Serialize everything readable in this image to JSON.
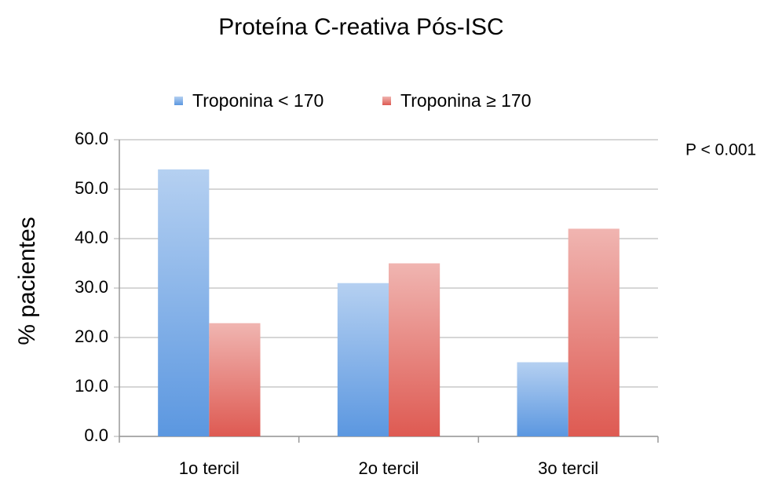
{
  "chart_data": {
    "type": "bar",
    "title": "Proteína C-reativa Pós-ISC",
    "y_label": "% pacientes",
    "annotation": "P < 0.001",
    "categories": [
      "1o tercil",
      "2o tercil",
      "3o tercil"
    ],
    "series": [
      {
        "name": "Troponina < 170",
        "color": "#5b97e0",
        "values": [
          54,
          31,
          15
        ]
      },
      {
        "name": "Troponina ≥ 170",
        "color": "#de5a52",
        "values": [
          22.9,
          35,
          42
        ]
      }
    ],
    "ylim": [
      0,
      60
    ],
    "yticks": [
      {
        "value": 0,
        "label": "0.0"
      },
      {
        "value": 10,
        "label": "10.0"
      },
      {
        "value": 20,
        "label": "20.0"
      },
      {
        "value": 30,
        "label": "30.0"
      },
      {
        "value": 40,
        "label": "40.0"
      },
      {
        "value": 50,
        "label": "50.0"
      },
      {
        "value": 60,
        "label": "60.0"
      }
    ],
    "grid": true,
    "legend": "top"
  }
}
